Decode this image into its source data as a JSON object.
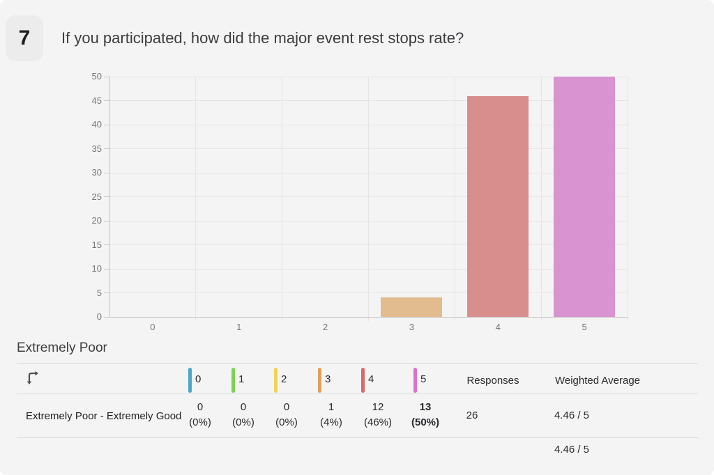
{
  "header": {
    "number": "7",
    "question": "If you participated, how did the major event rest stops rate?"
  },
  "chart_data": {
    "type": "bar",
    "title": "",
    "xlabel": "",
    "ylabel": "",
    "categories": [
      "0",
      "1",
      "2",
      "3",
      "4",
      "5"
    ],
    "values": [
      0,
      0,
      0,
      4,
      46,
      50
    ],
    "ylim": [
      0,
      50
    ],
    "ytick_step": 5,
    "bar_colors": [
      "#4ba7c9",
      "#7ed155",
      "#eed454",
      "#e2bb8e",
      "#d98e8e",
      "#d893d0"
    ],
    "grid": "on",
    "legend": "none"
  },
  "scale_label": "Extremely Poor",
  "table": {
    "columns": [
      {
        "label": "0",
        "color": "#4ba7c9"
      },
      {
        "label": "1",
        "color": "#7ed155"
      },
      {
        "label": "2",
        "color": "#eed454"
      },
      {
        "label": "3",
        "color": "#dda15e"
      },
      {
        "label": "4",
        "color": "#d96a6a"
      },
      {
        "label": "5",
        "color": "#de6fcd"
      }
    ],
    "responses_header": "Responses",
    "weighted_average_header": "Weighted Average",
    "row": {
      "label": "Extremely Poor - Extremely Good",
      "cells": [
        {
          "count": "0",
          "pct": "(0%)",
          "bold": false
        },
        {
          "count": "0",
          "pct": "(0%)",
          "bold": false
        },
        {
          "count": "0",
          "pct": "(0%)",
          "bold": false
        },
        {
          "count": "1",
          "pct": "(4%)",
          "bold": false
        },
        {
          "count": "12",
          "pct": "(46%)",
          "bold": false
        },
        {
          "count": "13",
          "pct": "(50%)",
          "bold": true
        }
      ],
      "responses": "26",
      "weighted_average": "4.46 / 5"
    },
    "footer": {
      "weighted_average": "4.46 / 5"
    }
  }
}
